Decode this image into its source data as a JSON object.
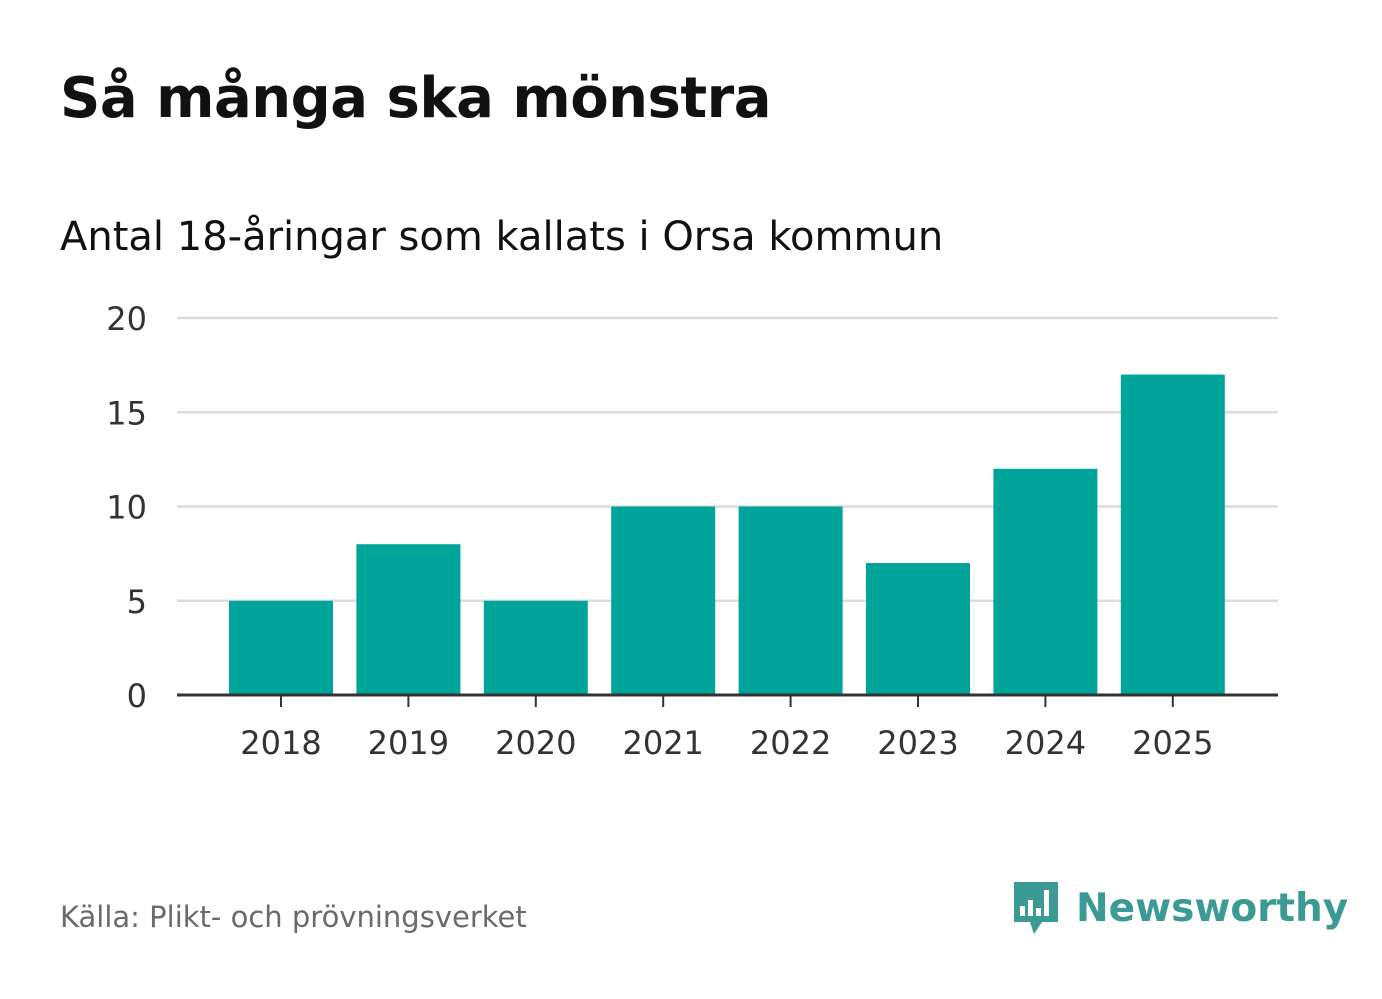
{
  "chart_data": {
    "type": "bar",
    "title": "Så många ska mönstra",
    "subtitle": "Antal 18-åringar som kallats i Orsa kommun",
    "categories": [
      "2018",
      "2019",
      "2020",
      "2021",
      "2022",
      "2023",
      "2024",
      "2025"
    ],
    "values": [
      5,
      8,
      5,
      10,
      10,
      7,
      12,
      17
    ],
    "xlabel": "",
    "ylabel": "",
    "ylim": [
      0,
      20
    ],
    "yticks": [
      0,
      5,
      10,
      15,
      20
    ],
    "grid": true,
    "legend": "none",
    "bar_color": "#00a499"
  },
  "source": "Källa: Plikt- och prövningsverket",
  "brand": {
    "name": "Newsworthy",
    "icon": "newsworthy-logo-icon",
    "color": "#3b9b94"
  }
}
